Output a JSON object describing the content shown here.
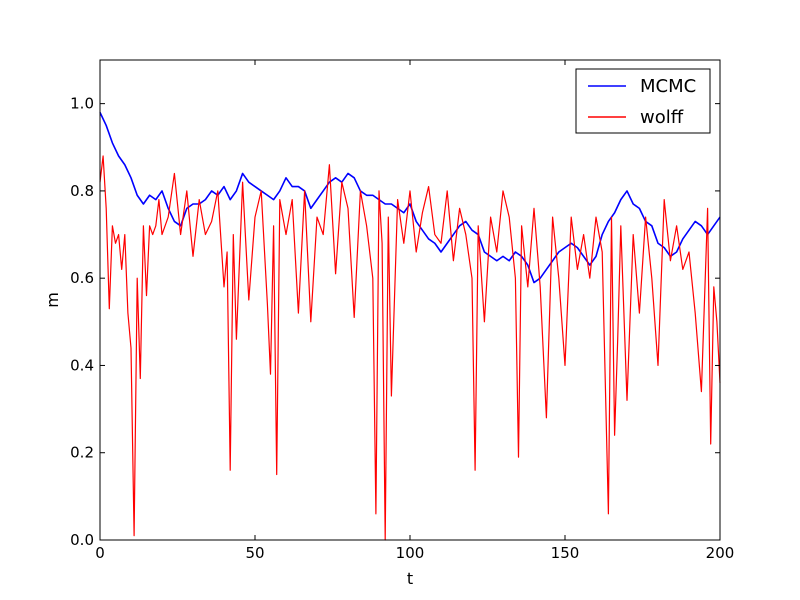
{
  "chart_data": {
    "type": "line",
    "title": "",
    "xlabel": "t",
    "ylabel": "m",
    "xlim": [
      0,
      200
    ],
    "ylim": [
      0.0,
      1.1
    ],
    "xticks": [
      0,
      50,
      100,
      150,
      200
    ],
    "yticks": [
      0.0,
      0.2,
      0.4,
      0.6,
      0.8,
      1.0
    ],
    "xtick_labels": [
      "0",
      "50",
      "100",
      "150",
      "200"
    ],
    "ytick_labels": [
      "0.0",
      "0.2",
      "0.4",
      "0.6",
      "0.8",
      "1.0"
    ],
    "grid": false,
    "legend_position": "top-right",
    "series": [
      {
        "name": "MCMC",
        "color": "#0000ff",
        "x": [
          0,
          2,
          4,
          6,
          8,
          10,
          12,
          14,
          16,
          18,
          20,
          22,
          24,
          26,
          28,
          30,
          32,
          34,
          36,
          38,
          40,
          42,
          44,
          46,
          48,
          50,
          52,
          54,
          56,
          58,
          60,
          62,
          64,
          66,
          68,
          70,
          72,
          74,
          76,
          78,
          80,
          82,
          84,
          86,
          88,
          90,
          92,
          94,
          96,
          98,
          100,
          102,
          104,
          106,
          108,
          110,
          112,
          114,
          116,
          118,
          120,
          122,
          124,
          126,
          128,
          130,
          132,
          134,
          136,
          138,
          140,
          142,
          144,
          146,
          148,
          150,
          152,
          154,
          156,
          158,
          160,
          162,
          164,
          166,
          168,
          170,
          172,
          174,
          176,
          178,
          180,
          182,
          184,
          186,
          188,
          190,
          192,
          194,
          196,
          198,
          200
        ],
        "values": [
          0.98,
          0.95,
          0.91,
          0.88,
          0.86,
          0.83,
          0.79,
          0.77,
          0.79,
          0.78,
          0.8,
          0.76,
          0.73,
          0.72,
          0.76,
          0.77,
          0.77,
          0.78,
          0.8,
          0.79,
          0.81,
          0.78,
          0.8,
          0.84,
          0.82,
          0.81,
          0.8,
          0.79,
          0.78,
          0.8,
          0.83,
          0.81,
          0.81,
          0.8,
          0.76,
          0.78,
          0.8,
          0.82,
          0.83,
          0.82,
          0.84,
          0.83,
          0.8,
          0.79,
          0.79,
          0.78,
          0.77,
          0.77,
          0.76,
          0.75,
          0.77,
          0.73,
          0.71,
          0.69,
          0.68,
          0.66,
          0.68,
          0.7,
          0.72,
          0.73,
          0.71,
          0.7,
          0.66,
          0.65,
          0.64,
          0.65,
          0.64,
          0.66,
          0.65,
          0.63,
          0.59,
          0.6,
          0.62,
          0.64,
          0.66,
          0.67,
          0.68,
          0.67,
          0.65,
          0.63,
          0.65,
          0.7,
          0.73,
          0.75,
          0.78,
          0.8,
          0.77,
          0.76,
          0.73,
          0.72,
          0.68,
          0.67,
          0.65,
          0.66,
          0.69,
          0.71,
          0.73,
          0.72,
          0.7,
          0.72,
          0.74
        ]
      },
      {
        "name": "wolff",
        "color": "#ff0000",
        "x": [
          0,
          1,
          2,
          3,
          4,
          5,
          6,
          7,
          8,
          9,
          10,
          11,
          12,
          13,
          14,
          15,
          16,
          17,
          18,
          19,
          20,
          22,
          24,
          26,
          28,
          30,
          32,
          34,
          36,
          38,
          40,
          41,
          42,
          43,
          44,
          46,
          48,
          50,
          52,
          54,
          55,
          56,
          57,
          58,
          60,
          62,
          64,
          66,
          68,
          70,
          72,
          74,
          76,
          78,
          80,
          82,
          84,
          86,
          88,
          89,
          90,
          91,
          92,
          93,
          94,
          96,
          98,
          100,
          102,
          104,
          106,
          108,
          110,
          112,
          114,
          116,
          118,
          120,
          121,
          122,
          124,
          126,
          128,
          130,
          132,
          134,
          135,
          136,
          138,
          140,
          142,
          144,
          146,
          148,
          150,
          152,
          154,
          156,
          158,
          160,
          162,
          164,
          165,
          166,
          167,
          168,
          170,
          172,
          174,
          176,
          178,
          180,
          182,
          184,
          186,
          188,
          190,
          192,
          194,
          196,
          197,
          198,
          199,
          200
        ],
        "values": [
          0.82,
          0.88,
          0.76,
          0.53,
          0.72,
          0.68,
          0.7,
          0.62,
          0.7,
          0.52,
          0.44,
          0.01,
          0.6,
          0.37,
          0.72,
          0.56,
          0.72,
          0.7,
          0.72,
          0.78,
          0.7,
          0.74,
          0.84,
          0.7,
          0.8,
          0.65,
          0.78,
          0.7,
          0.73,
          0.8,
          0.58,
          0.66,
          0.16,
          0.7,
          0.46,
          0.82,
          0.55,
          0.74,
          0.8,
          0.54,
          0.38,
          0.72,
          0.15,
          0.78,
          0.7,
          0.78,
          0.52,
          0.8,
          0.5,
          0.74,
          0.7,
          0.86,
          0.61,
          0.82,
          0.76,
          0.51,
          0.8,
          0.72,
          0.6,
          0.06,
          0.8,
          0.68,
          0.0,
          0.74,
          0.33,
          0.78,
          0.68,
          0.8,
          0.66,
          0.75,
          0.81,
          0.7,
          0.68,
          0.8,
          0.64,
          0.76,
          0.7,
          0.6,
          0.16,
          0.72,
          0.5,
          0.74,
          0.66,
          0.8,
          0.74,
          0.6,
          0.19,
          0.72,
          0.58,
          0.76,
          0.58,
          0.28,
          0.74,
          0.6,
          0.4,
          0.74,
          0.62,
          0.7,
          0.6,
          0.74,
          0.66,
          0.06,
          0.74,
          0.24,
          0.46,
          0.72,
          0.32,
          0.7,
          0.52,
          0.74,
          0.6,
          0.4,
          0.78,
          0.64,
          0.72,
          0.62,
          0.66,
          0.52,
          0.34,
          0.76,
          0.22,
          0.58,
          0.5,
          0.36
        ]
      }
    ]
  }
}
